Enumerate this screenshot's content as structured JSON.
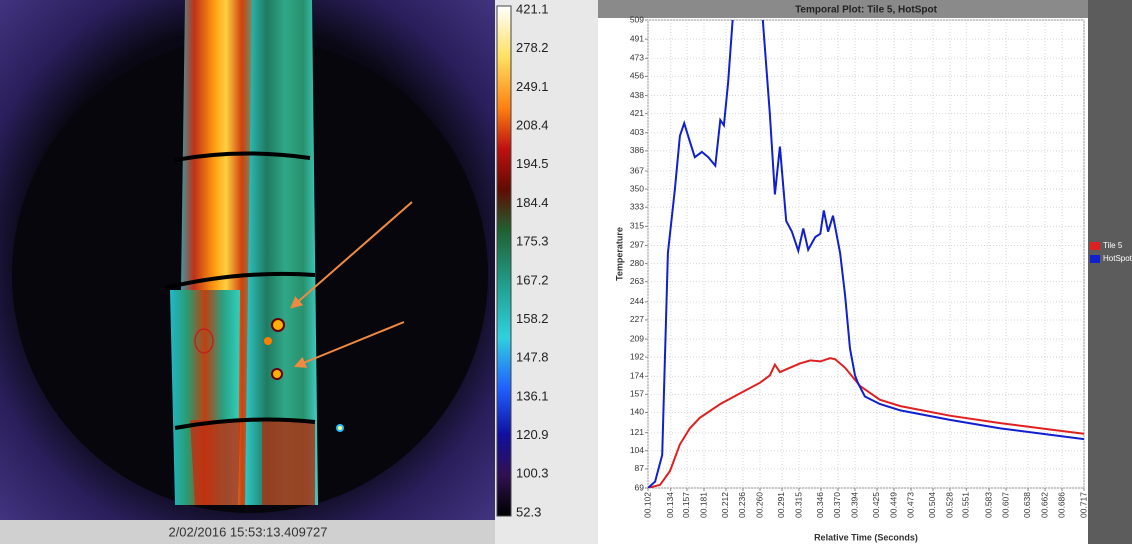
{
  "thermal_view": {
    "timestamp": "2/02/2016 15:53:13.409727",
    "colorbar_labels": [
      421.1,
      278.2,
      249.1,
      208.4,
      194.5,
      184.4,
      175.3,
      167.2,
      158.2,
      147.8,
      136.1,
      120.9,
      100.3,
      52.3
    ]
  },
  "chart_data": {
    "type": "line",
    "title": "Temporal Plot: Tile 5, HotSpot",
    "x_label": "Relative Time (Seconds)",
    "y_label": "Temperature",
    "xlim": [
      0.102,
      0.717
    ],
    "ylim": [
      69,
      509
    ],
    "grid": true,
    "xticks": [
      {
        "value": 0.102,
        "label": "00.102"
      },
      {
        "value": 0.134,
        "label": "00.134"
      },
      {
        "value": 0.157,
        "label": "00.157"
      },
      {
        "value": 0.181,
        "label": "00.181"
      },
      {
        "value": 0.212,
        "label": "00.212"
      },
      {
        "value": 0.236,
        "label": "00.236"
      },
      {
        "value": 0.26,
        "label": "00.260"
      },
      {
        "value": 0.291,
        "label": "00.291"
      },
      {
        "value": 0.315,
        "label": "00.315"
      },
      {
        "value": 0.346,
        "label": "00.346"
      },
      {
        "value": 0.37,
        "label": "00.370"
      },
      {
        "value": 0.394,
        "label": "00.394"
      },
      {
        "value": 0.425,
        "label": "00.425"
      },
      {
        "value": 0.449,
        "label": "00.449"
      },
      {
        "value": 0.473,
        "label": "00.473"
      },
      {
        "value": 0.504,
        "label": "00.504"
      },
      {
        "value": 0.528,
        "label": "00.528"
      },
      {
        "value": 0.551,
        "label": "00.551"
      },
      {
        "value": 0.583,
        "label": "00.583"
      },
      {
        "value": 0.607,
        "label": "00.607"
      },
      {
        "value": 0.638,
        "label": "00.638"
      },
      {
        "value": 0.662,
        "label": "00.662"
      },
      {
        "value": 0.686,
        "label": "00.686"
      },
      {
        "value": 0.717,
        "label": "00.717"
      }
    ],
    "yticks": [
      69,
      87,
      104,
      121,
      140,
      157,
      174,
      192,
      209,
      227,
      244,
      263,
      280,
      297,
      315,
      333,
      350,
      367,
      386,
      403,
      421,
      438,
      456,
      473,
      491,
      509
    ],
    "series": [
      {
        "name": "Tile 5",
        "color": "#e02020",
        "x": [
          0.102,
          0.119,
          0.133,
          0.147,
          0.161,
          0.175,
          0.204,
          0.232,
          0.26,
          0.274,
          0.281,
          0.288,
          0.302,
          0.316,
          0.331,
          0.345,
          0.359,
          0.366,
          0.38,
          0.401,
          0.429,
          0.458,
          0.528,
          0.599,
          0.669,
          0.717
        ],
        "values": [
          69,
          72,
          85,
          110,
          125,
          135,
          148,
          158,
          168,
          175,
          185,
          178,
          182,
          186,
          189,
          188,
          191,
          190,
          182,
          165,
          152,
          146,
          137,
          130,
          124,
          120
        ]
      },
      {
        "name": "HotSpot",
        "color": "#1020d0",
        "x": [
          0.102,
          0.112,
          0.122,
          0.13,
          0.14,
          0.147,
          0.153,
          0.161,
          0.168,
          0.178,
          0.187,
          0.197,
          0.204,
          0.209,
          0.215,
          0.222,
          0.239,
          0.257,
          0.264,
          0.274,
          0.281,
          0.288,
          0.297,
          0.305,
          0.314,
          0.321,
          0.328,
          0.338,
          0.345,
          0.35,
          0.356,
          0.363,
          0.373,
          0.38,
          0.387,
          0.394,
          0.398,
          0.408,
          0.429,
          0.458,
          0.528,
          0.599,
          0.669,
          0.717
        ],
        "values": [
          69,
          75,
          100,
          290,
          350,
          400,
          412,
          395,
          380,
          385,
          380,
          372,
          415,
          410,
          450,
          515,
          540,
          530,
          509,
          420,
          345,
          390,
          320,
          310,
          292,
          313,
          293,
          305,
          308,
          330,
          310,
          325,
          290,
          250,
          200,
          175,
          168,
          155,
          148,
          142,
          133,
          125,
          119,
          115
        ]
      }
    ]
  }
}
